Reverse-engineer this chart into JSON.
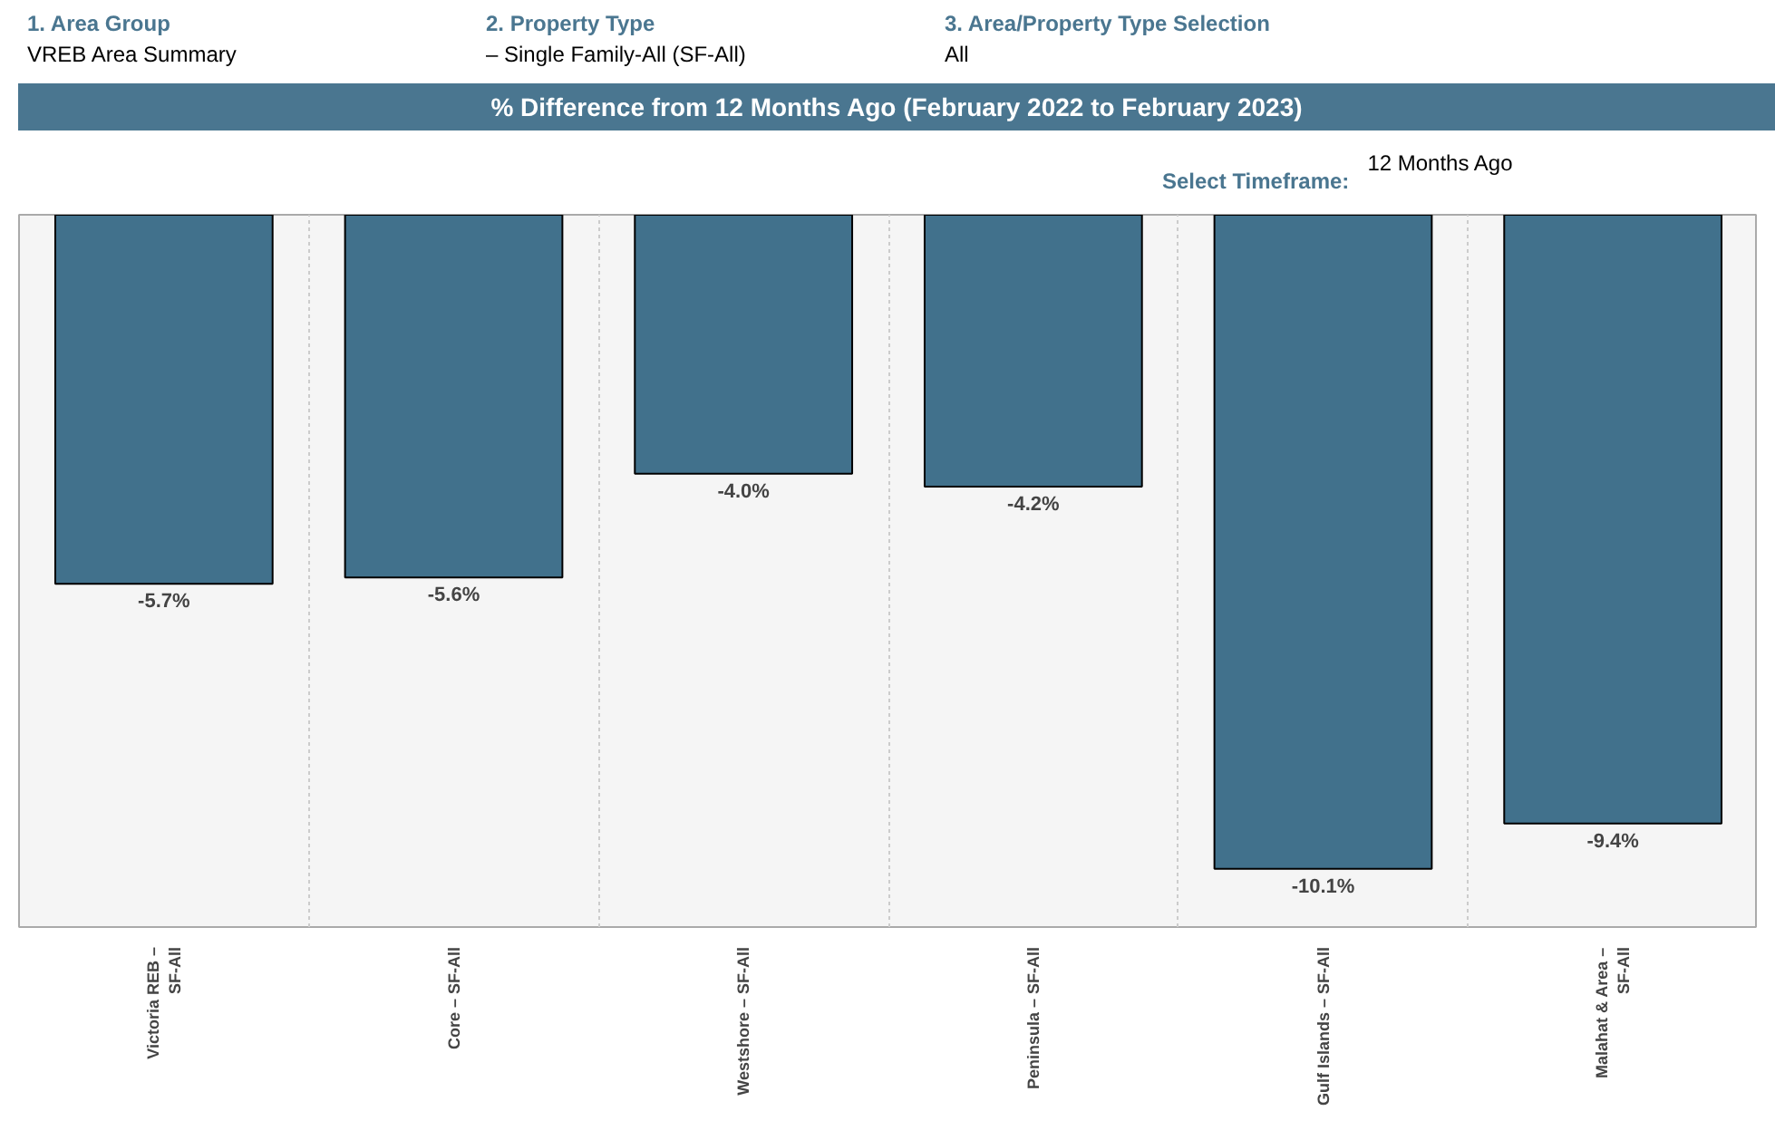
{
  "chart_data": {
    "type": "bar",
    "title": "% Difference from 12 Months Ago (February 2022 to February 2023)",
    "categories": [
      "Victoria REB –\nSF-All",
      "Core – SF-All",
      "Westshore – SF-All",
      "Peninsula – SF-All",
      "Gulf Islands – SF-All",
      "Malahat & Area –\nSF-All"
    ],
    "values": [
      -5.7,
      -5.6,
      -4.0,
      -4.2,
      -10.1,
      -9.4
    ],
    "value_labels": [
      "-5.7%",
      "-5.6%",
      "-4.0%",
      "-4.2%",
      "-10.1%",
      "-9.4%"
    ],
    "color": "#41718c",
    "ylim": [
      -11,
      0
    ],
    "tick_labels": "x",
    "grid": "x",
    "annotations": [
      "1. Area Group",
      "VREB Area Summary",
      "2. Property Type",
      "– Single Family-All (SF-All)",
      "3. Area/Property Type Selection",
      "All",
      "Select Timeframe:",
      "12 Months Ago"
    ]
  }
}
